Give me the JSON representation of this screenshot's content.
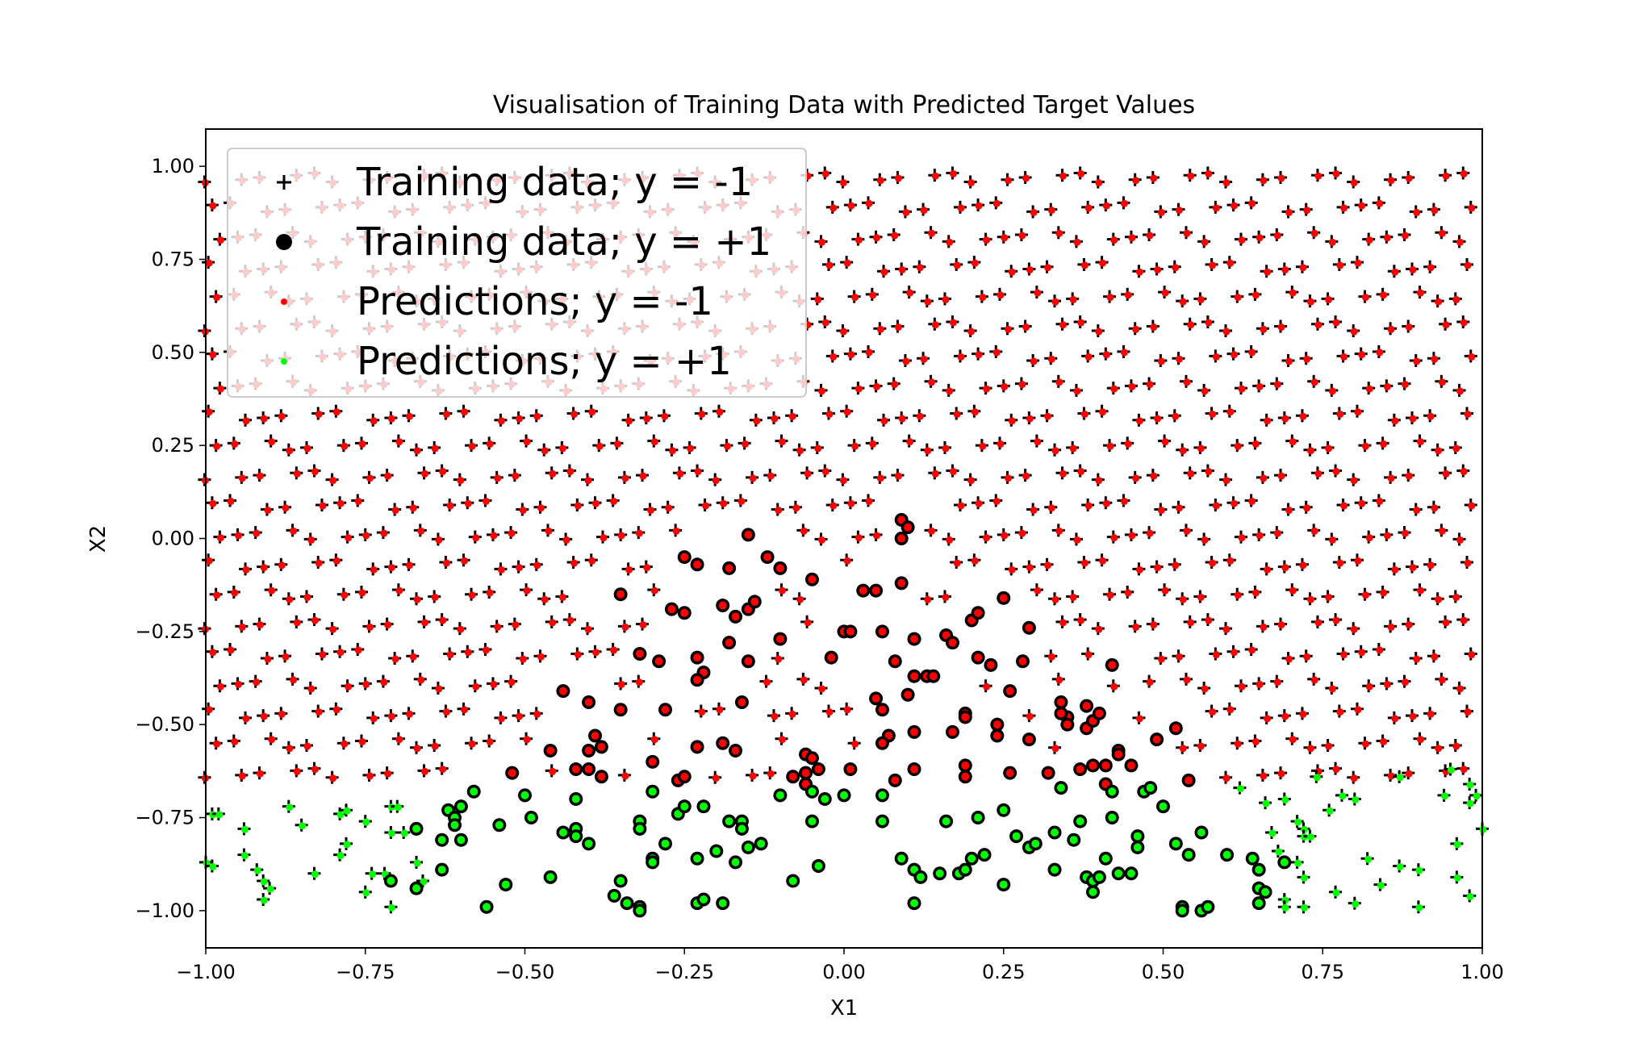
{
  "chart_data": {
    "type": "scatter",
    "title": "Visualisation of Training Data with Predicted Target Values",
    "xlabel": "X1",
    "ylabel": "X2",
    "xlim": [
      -1.0,
      1.0
    ],
    "ylim": [
      -1.1,
      1.1
    ],
    "x_ticks": [
      "−1.00",
      "−0.75",
      "−0.50",
      "−0.25",
      "0.00",
      "0.25",
      "0.50",
      "0.75",
      "1.00"
    ],
    "y_ticks": [
      "1.00",
      "0.75",
      "0.50",
      "0.25",
      "0.00",
      "−0.25",
      "−0.50",
      "−0.75",
      "−1.00"
    ],
    "grid": false,
    "legend_position": "upper-left",
    "legend": [
      {
        "label": "Training data; y = -1",
        "marker": "+",
        "color": "#000000"
      },
      {
        "label": "Training data; y = +1",
        "marker": "o",
        "color": "#000000"
      },
      {
        "label": "Predictions; y = -1",
        "marker": ".",
        "color": "#ff0000"
      },
      {
        "label": "Predictions; y = +1",
        "marker": ".",
        "color": "#00ff00"
      }
    ],
    "colors": {
      "pred_neg": "#ff0000",
      "pred_pos": "#00ff00",
      "train": "#000000"
    },
    "series": [
      {
        "name": "Training data; y = +1",
        "marker": "o",
        "points": [
          [
            -0.3,
            -0.6
          ],
          [
            -0.25,
            -0.05
          ],
          [
            -0.23,
            -0.07
          ],
          [
            -0.18,
            -0.08
          ],
          [
            -0.15,
            0.01
          ],
          [
            -0.12,
            -0.05
          ],
          [
            -0.1,
            -0.08
          ],
          [
            -0.35,
            -0.15
          ],
          [
            -0.27,
            -0.19
          ],
          [
            -0.25,
            -0.2
          ],
          [
            -0.19,
            -0.18
          ],
          [
            -0.17,
            -0.21
          ],
          [
            -0.15,
            -0.19
          ],
          [
            -0.14,
            -0.17
          ],
          [
            -0.32,
            -0.31
          ],
          [
            -0.29,
            -0.33
          ],
          [
            -0.23,
            -0.32
          ],
          [
            -0.22,
            -0.36
          ],
          [
            -0.23,
            -0.38
          ],
          [
            -0.18,
            -0.28
          ],
          [
            -0.15,
            -0.33
          ],
          [
            -0.1,
            -0.27
          ],
          [
            -0.05,
            -0.11
          ],
          [
            0.0,
            -0.25
          ],
          [
            0.01,
            -0.25
          ],
          [
            -0.02,
            -0.32
          ],
          [
            0.03,
            -0.14
          ],
          [
            0.05,
            -0.14
          ],
          [
            0.09,
            -0.12
          ],
          [
            0.09,
            0.05
          ],
          [
            0.1,
            0.03
          ],
          [
            0.09,
            0.0
          ],
          [
            0.06,
            -0.25
          ],
          [
            0.08,
            -0.33
          ],
          [
            0.11,
            -0.27
          ],
          [
            0.11,
            -0.37
          ],
          [
            0.13,
            -0.37
          ],
          [
            0.14,
            -0.37
          ],
          [
            0.16,
            -0.26
          ],
          [
            0.17,
            -0.28
          ],
          [
            0.2,
            -0.22
          ],
          [
            0.21,
            -0.2
          ],
          [
            0.25,
            -0.16
          ],
          [
            0.29,
            -0.24
          ],
          [
            0.23,
            -0.34
          ],
          [
            0.21,
            -0.32
          ],
          [
            0.26,
            -0.41
          ],
          [
            0.28,
            -0.33
          ],
          [
            -0.44,
            -0.41
          ],
          [
            -0.4,
            -0.44
          ],
          [
            -0.35,
            -0.46
          ],
          [
            -0.28,
            -0.46
          ],
          [
            -0.39,
            -0.53
          ],
          [
            -0.4,
            -0.57
          ],
          [
            -0.38,
            -0.56
          ],
          [
            -0.42,
            -0.62
          ],
          [
            -0.4,
            -0.62
          ],
          [
            -0.38,
            -0.64
          ],
          [
            -0.46,
            -0.57
          ],
          [
            -0.5,
            -0.69
          ],
          [
            -0.52,
            -0.63
          ],
          [
            -0.58,
            -0.68
          ],
          [
            -0.26,
            -0.65
          ],
          [
            -0.25,
            -0.64
          ],
          [
            -0.23,
            -0.56
          ],
          [
            -0.19,
            -0.55
          ],
          [
            -0.17,
            -0.57
          ],
          [
            -0.16,
            -0.44
          ],
          [
            -0.08,
            -0.64
          ],
          [
            -0.06,
            -0.58
          ],
          [
            -0.05,
            -0.59
          ],
          [
            -0.06,
            -0.63
          ],
          [
            -0.06,
            -0.66
          ],
          [
            -0.04,
            -0.62
          ],
          [
            0.01,
            -0.62
          ],
          [
            0.05,
            -0.43
          ],
          [
            0.06,
            -0.46
          ],
          [
            0.07,
            -0.53
          ],
          [
            0.06,
            -0.55
          ],
          [
            0.08,
            -0.65
          ],
          [
            0.1,
            -0.42
          ],
          [
            0.11,
            -0.52
          ],
          [
            0.11,
            -0.62
          ],
          [
            0.17,
            -0.52
          ],
          [
            0.19,
            -0.47
          ],
          [
            0.19,
            -0.48
          ],
          [
            0.19,
            -0.61
          ],
          [
            0.19,
            -0.64
          ],
          [
            0.24,
            -0.5
          ],
          [
            0.24,
            -0.53
          ],
          [
            0.26,
            -0.63
          ],
          [
            0.29,
            -0.54
          ],
          [
            0.32,
            -0.63
          ],
          [
            0.34,
            -0.44
          ],
          [
            0.35,
            -0.48
          ],
          [
            0.35,
            -0.5
          ],
          [
            0.34,
            -0.47
          ],
          [
            0.37,
            -0.62
          ],
          [
            0.38,
            -0.45
          ],
          [
            0.38,
            -0.51
          ],
          [
            0.39,
            -0.49
          ],
          [
            0.4,
            -0.47
          ],
          [
            0.39,
            -0.61
          ],
          [
            0.41,
            -0.61
          ],
          [
            0.43,
            -0.57
          ],
          [
            0.43,
            -0.58
          ],
          [
            0.45,
            -0.61
          ],
          [
            0.42,
            -0.34
          ],
          [
            0.49,
            -0.54
          ],
          [
            0.52,
            -0.51
          ],
          [
            -0.71,
            -0.92
          ],
          [
            -0.67,
            -0.78
          ],
          [
            -0.67,
            -0.94
          ],
          [
            -0.63,
            -0.89
          ],
          [
            -0.62,
            -0.73
          ],
          [
            -0.61,
            -0.75
          ],
          [
            -0.6,
            -0.72
          ],
          [
            -0.61,
            -0.77
          ],
          [
            -0.63,
            -0.81
          ],
          [
            -0.6,
            -0.81
          ],
          [
            -0.56,
            -0.99
          ],
          [
            -0.53,
            -0.93
          ],
          [
            -0.54,
            -0.77
          ],
          [
            -0.49,
            -0.75
          ],
          [
            -0.46,
            -0.91
          ],
          [
            -0.44,
            -0.79
          ],
          [
            -0.42,
            -0.7
          ],
          [
            -0.42,
            -0.78
          ],
          [
            -0.42,
            -0.8
          ],
          [
            -0.4,
            -0.82
          ],
          [
            -0.36,
            -0.96
          ],
          [
            -0.35,
            -0.92
          ],
          [
            -0.34,
            -0.98
          ],
          [
            -0.32,
            -0.99
          ],
          [
            -0.32,
            -1.0
          ],
          [
            -0.32,
            -0.76
          ],
          [
            -0.32,
            -0.78
          ],
          [
            -0.3,
            -0.68
          ],
          [
            -0.3,
            -0.86
          ],
          [
            -0.3,
            -0.87
          ],
          [
            -0.28,
            -0.82
          ],
          [
            -0.26,
            -0.74
          ],
          [
            -0.25,
            -0.72
          ],
          [
            -0.22,
            -0.72
          ],
          [
            -0.23,
            -0.86
          ],
          [
            -0.23,
            -0.98
          ],
          [
            -0.22,
            -0.97
          ],
          [
            -0.2,
            -0.84
          ],
          [
            -0.19,
            -0.98
          ],
          [
            -0.18,
            -0.76
          ],
          [
            -0.17,
            -0.87
          ],
          [
            -0.16,
            -0.76
          ],
          [
            -0.16,
            -0.78
          ],
          [
            -0.15,
            -0.83
          ],
          [
            -0.13,
            -0.82
          ],
          [
            -0.1,
            -0.69
          ],
          [
            -0.08,
            -0.92
          ],
          [
            -0.05,
            -0.68
          ],
          [
            -0.05,
            -0.76
          ],
          [
            -0.04,
            -0.88
          ],
          [
            -0.03,
            -0.7
          ],
          [
            0.0,
            -0.69
          ],
          [
            0.06,
            -0.69
          ],
          [
            0.06,
            -0.76
          ],
          [
            0.09,
            -0.86
          ],
          [
            0.11,
            -0.89
          ],
          [
            0.11,
            -0.98
          ],
          [
            0.12,
            -0.91
          ],
          [
            0.15,
            -0.9
          ],
          [
            0.16,
            -0.76
          ],
          [
            0.18,
            -0.9
          ],
          [
            0.19,
            -0.89
          ],
          [
            0.2,
            -0.86
          ],
          [
            0.21,
            -0.75
          ],
          [
            0.22,
            -0.85
          ],
          [
            0.25,
            -0.73
          ],
          [
            0.25,
            -0.93
          ],
          [
            0.27,
            -0.8
          ],
          [
            0.29,
            -0.83
          ],
          [
            0.3,
            -0.82
          ],
          [
            0.33,
            -0.79
          ],
          [
            0.33,
            -0.89
          ],
          [
            0.34,
            -0.67
          ],
          [
            0.36,
            -0.81
          ],
          [
            0.37,
            -0.76
          ],
          [
            0.38,
            -0.91
          ],
          [
            0.39,
            -0.92
          ],
          [
            0.39,
            -0.95
          ],
          [
            0.4,
            -0.91
          ],
          [
            0.41,
            -0.66
          ],
          [
            0.41,
            -0.86
          ],
          [
            0.42,
            -0.68
          ],
          [
            0.42,
            -0.75
          ],
          [
            0.43,
            -0.9
          ],
          [
            0.45,
            -0.9
          ],
          [
            0.46,
            -0.8
          ],
          [
            0.46,
            -0.83
          ],
          [
            0.47,
            -0.68
          ],
          [
            0.48,
            -0.67
          ],
          [
            0.5,
            -0.72
          ],
          [
            0.52,
            -0.82
          ],
          [
            0.53,
            -0.99
          ],
          [
            0.53,
            -1.0
          ],
          [
            0.54,
            -0.65
          ],
          [
            0.54,
            -0.85
          ],
          [
            0.56,
            -0.79
          ],
          [
            0.56,
            -1.0
          ],
          [
            0.57,
            -0.99
          ],
          [
            0.6,
            -0.85
          ],
          [
            0.64,
            -0.86
          ],
          [
            0.65,
            -0.89
          ],
          [
            0.65,
            -0.94
          ],
          [
            0.65,
            -0.98
          ],
          [
            0.66,
            -0.95
          ],
          [
            0.69,
            -0.87
          ]
        ]
      },
      {
        "name": "Predictions; y = +1",
        "marker": "+",
        "points": [
          [
            -0.99,
            -0.74
          ],
          [
            -0.98,
            -0.74
          ],
          [
            -1.0,
            -0.87
          ],
          [
            -0.99,
            -0.88
          ],
          [
            -0.94,
            -0.78
          ],
          [
            -0.92,
            -0.89
          ],
          [
            -0.94,
            -0.85
          ],
          [
            -0.91,
            -0.92
          ],
          [
            -0.9,
            -0.94
          ],
          [
            -0.91,
            -0.97
          ],
          [
            -0.87,
            -0.72
          ],
          [
            -0.85,
            -0.77
          ],
          [
            -0.83,
            -0.9
          ],
          [
            -0.79,
            -0.74
          ],
          [
            -0.79,
            -0.85
          ],
          [
            -0.78,
            -0.73
          ],
          [
            -0.78,
            -0.82
          ],
          [
            -0.75,
            -0.76
          ],
          [
            -0.74,
            -0.9
          ],
          [
            -0.75,
            -0.95
          ],
          [
            -0.72,
            -0.9
          ],
          [
            -0.71,
            -0.72
          ],
          [
            -0.71,
            -0.79
          ],
          [
            -0.7,
            -0.72
          ],
          [
            -0.69,
            -0.79
          ],
          [
            -0.71,
            -0.99
          ],
          [
            -0.67,
            -0.87
          ],
          [
            -0.66,
            -0.92
          ],
          [
            0.62,
            -0.67
          ],
          [
            0.66,
            -0.71
          ],
          [
            0.67,
            -0.79
          ],
          [
            0.68,
            -0.84
          ],
          [
            0.69,
            -0.97
          ],
          [
            0.69,
            -0.99
          ],
          [
            0.71,
            -0.76
          ],
          [
            0.72,
            -0.78
          ],
          [
            0.72,
            -0.8
          ],
          [
            0.73,
            -0.8
          ],
          [
            0.71,
            -0.87
          ],
          [
            0.72,
            -0.91
          ],
          [
            0.72,
            -0.99
          ],
          [
            0.74,
            -0.64
          ],
          [
            0.76,
            -0.73
          ],
          [
            0.77,
            -0.95
          ],
          [
            0.78,
            -0.69
          ],
          [
            0.8,
            -0.7
          ],
          [
            0.8,
            -0.98
          ],
          [
            0.82,
            -0.86
          ],
          [
            0.84,
            -0.93
          ],
          [
            0.87,
            -0.64
          ],
          [
            0.87,
            -0.88
          ],
          [
            0.9,
            -0.89
          ],
          [
            0.9,
            -0.99
          ],
          [
            0.94,
            -0.69
          ],
          [
            0.95,
            -0.62
          ],
          [
            0.96,
            -0.82
          ],
          [
            0.96,
            -0.91
          ],
          [
            0.98,
            -0.66
          ],
          [
            0.98,
            -0.71
          ],
          [
            0.99,
            -0.69
          ],
          [
            0.98,
            -0.96
          ],
          [
            1.0,
            -0.78
          ],
          [
            0.69,
            -0.7
          ]
        ]
      },
      {
        "name": "Predictions; y = -1",
        "marker": "+",
        "grid_samples": {
          "cols": [
            -0.99,
            -0.95,
            -0.91,
            -0.87,
            -0.83,
            -0.79,
            -0.75,
            -0.71,
            -0.67,
            -0.63,
            -0.59,
            -0.55,
            -0.51,
            -0.47,
            -0.43,
            -0.39,
            -0.35,
            -0.31,
            -0.27,
            -0.23,
            -0.19,
            -0.15,
            -0.11,
            -0.07,
            -0.03,
            0.01,
            0.05,
            0.09,
            0.13,
            0.17,
            0.21,
            0.25,
            0.29,
            0.33,
            0.37,
            0.41,
            0.45,
            0.49,
            0.53,
            0.57,
            0.61,
            0.65,
            0.69,
            0.73,
            0.77,
            0.81,
            0.85,
            0.89,
            0.93,
            0.97
          ],
          "rows": [
            0.97,
            0.89,
            0.81,
            0.73,
            0.65,
            0.57,
            0.49,
            0.41,
            0.33,
            0.25,
            0.17,
            0.09,
            0.01,
            -0.07,
            -0.15,
            -0.23,
            -0.31,
            -0.39,
            -0.47,
            -0.55,
            -0.63
          ]
        }
      }
    ]
  }
}
